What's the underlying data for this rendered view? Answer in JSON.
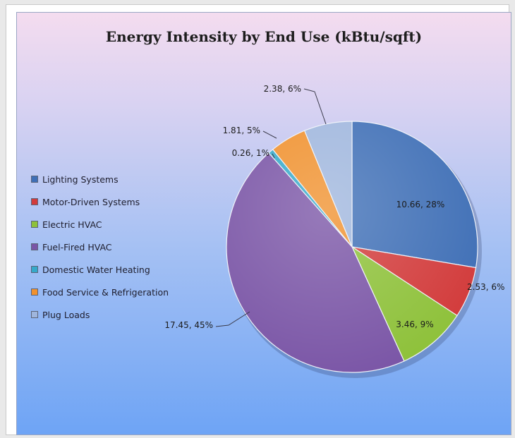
{
  "chart_data": {
    "type": "pie",
    "title": "Energy Intensity by End Use (kBtu/sqft)",
    "legend_position": "left",
    "slices": [
      {
        "name": "Lighting Systems",
        "value": 10.66,
        "percent": "28%",
        "label": "10.66, 28%",
        "color": "#3f6fb6"
      },
      {
        "name": "Motor-Driven Systems",
        "value": 2.53,
        "percent": "6%",
        "label": "2.53, 6%",
        "color": "#d23b3b"
      },
      {
        "name": "Electric HVAC",
        "value": 3.46,
        "percent": "9%",
        "label": "3.46, 9%",
        "color": "#8ec13a"
      },
      {
        "name": "Fuel-Fired HVAC",
        "value": 17.45,
        "percent": "45%",
        "label": "17.45, 45%",
        "color": "#7a55a6"
      },
      {
        "name": "Domestic Water Heating",
        "value": 0.26,
        "percent": "1%",
        "label": "0.26, 1%",
        "color": "#35a9c9"
      },
      {
        "name": "Food Service & Refrigeration",
        "value": 1.81,
        "percent": "5%",
        "label": "1.81, 5%",
        "color": "#f0912e"
      },
      {
        "name": "Plug Loads",
        "value": 2.38,
        "percent": "6%",
        "label": "2.38, 6%",
        "color": "#9fb6dd"
      }
    ]
  }
}
